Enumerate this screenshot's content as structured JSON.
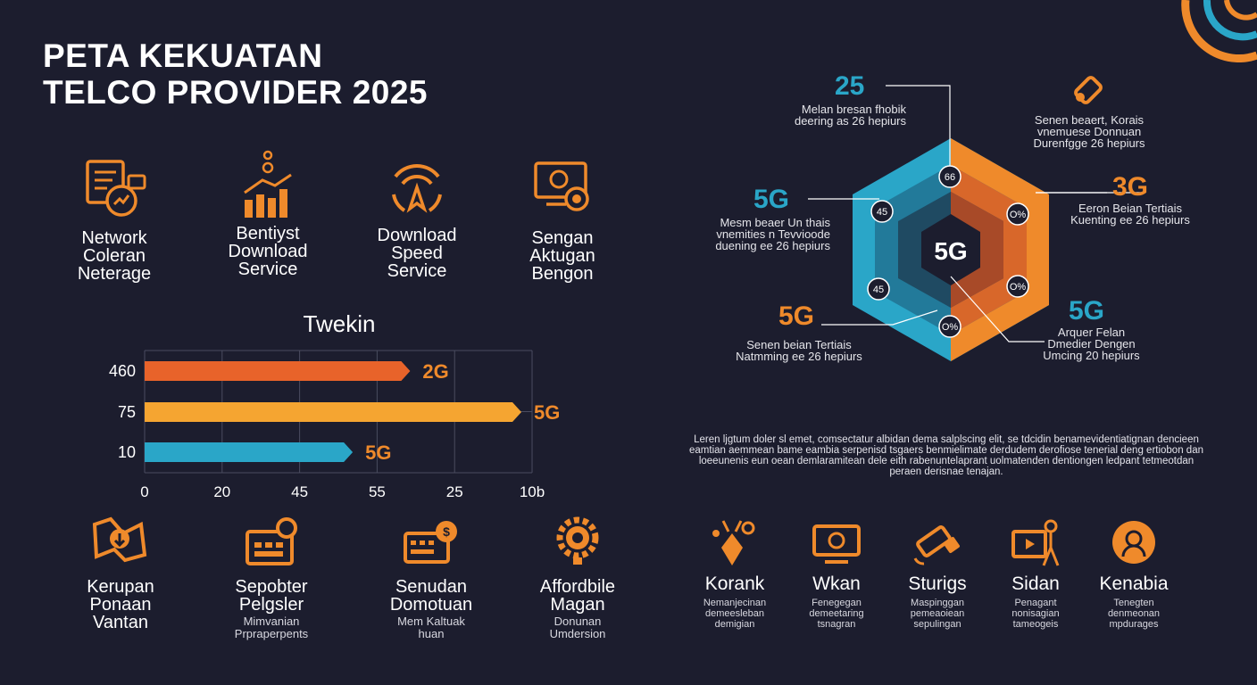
{
  "title": "PETA KEKUATAN\nTELCO PROVIDER 2025",
  "colors": {
    "background": "#1c1d2e",
    "orange": "#ef8a2b",
    "orange_dark": "#e8632a",
    "amber": "#f5a531",
    "blue": "#2aa6c8"
  },
  "features": [
    {
      "icon": "document-chart-icon",
      "label": "Network\nColeran\nNeterage"
    },
    {
      "icon": "bar-chart-icon",
      "label": "Bentiyst\nDownload\nService"
    },
    {
      "icon": "wifi-signal-icon",
      "label": "Download\nSpeed\nService"
    },
    {
      "icon": "monitor-badge-icon",
      "label": "Sengan\nAktugan\nBengon"
    }
  ],
  "chart_data": {
    "type": "bar",
    "title": "Twekin",
    "orientation": "horizontal",
    "categories": [
      "460",
      "75",
      "10"
    ],
    "values": [
      74,
      105,
      58
    ],
    "bar_labels": [
      "2G",
      "5G",
      "5G"
    ],
    "x_tick_labels": [
      "0",
      "20",
      "45",
      "55",
      "25",
      "10b"
    ],
    "grid": true
  },
  "bottom_left": [
    {
      "icon": "graph-download-icon",
      "label": "Kerupan\nPonaan\nVantan",
      "sub": ""
    },
    {
      "icon": "calendar-dashboard-icon",
      "label": "Sepobter\nPelgsler",
      "sub": "Mimvanian\nPrpraperpents"
    },
    {
      "icon": "card-dollar-icon",
      "label": "Senudan\nDomotuan",
      "sub": "Mem Kaltuak\nhuan"
    },
    {
      "icon": "gear-bulb-icon",
      "label": "Affordbile\nMagan",
      "sub": "Donunan\nUmdersion"
    }
  ],
  "hexagon": {
    "center": "5G",
    "nodes": [
      "66",
      "45",
      "O%",
      "45",
      "O%",
      "O%"
    ],
    "callouts": [
      {
        "big": "25",
        "text": "Melan bresan fhobik\ndeering as 26 hepiurs"
      },
      {
        "big": "",
        "text": "Senen beaert, Korais\nvnemuese Donnuan\nDurenfgge 26 hepiurs"
      },
      {
        "big": "5G",
        "text": "Mesm beaer Un thais\nvnemities n Tevvioode\nduening ee 26 hepiurs"
      },
      {
        "big": "3G",
        "text": "Eeron Beian Tertiais\nKuenting ee 26 hepiurs"
      },
      {
        "big": "5G",
        "text": "Senen beian Tertiais\nNatmming ee 26 hepiurs"
      },
      {
        "big": "5G",
        "text": "Arquer Felan\nDmedier Dengen\nUmcing 20 hepiurs"
      }
    ]
  },
  "paragraph": "Leren ljgtum doler sl emet, comsectatur albidan dema salplscing elit, se tdcidin benamevidentiatignan dencieen eamtian aemmean bame eambia serpenisd tsgaers benmielimate derdudem derofiose tenerial deng ertiobon dan loeeunenis eun oean demlaramitean dele eith rabenuntelaprant uolmatenden dentiongen ledpant tetmeotdan peraen derisnae tenajan.",
  "bottom_right": [
    {
      "icon": "tower-signal-icon",
      "label": "Korank",
      "sub": "Nemanjecinan\ndemeesleban\ndemigian"
    },
    {
      "icon": "monitor-dollar-icon",
      "label": "Wkan",
      "sub": "Fenegegan\ndemeetaring\ntsnagran"
    },
    {
      "icon": "satellite-icon",
      "label": "Sturigs",
      "sub": "Maspinggan\npemeaoiean\nsepulingan"
    },
    {
      "icon": "presentation-icon",
      "label": "Sidan",
      "sub": "Penagant\nnonisagian\ntameogeis"
    },
    {
      "icon": "user-headset-icon",
      "label": "Kenabia",
      "sub": "Tenegten\ndenmeonan\nmpdurages"
    }
  ]
}
